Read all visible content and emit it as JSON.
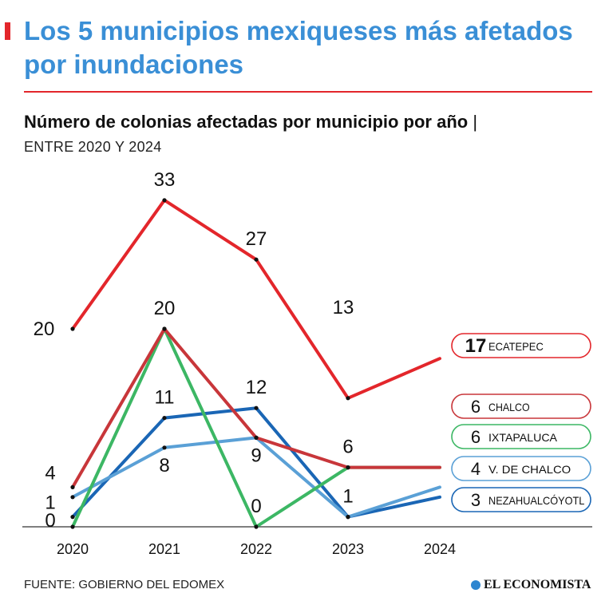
{
  "title": "Los 5 municipios mexiqueses más afetados por inundaciones",
  "subtitle": "Número de colonias afectadas por municipio por año",
  "subtitle_sep": "|",
  "subtitle2": "ENTRE 2020 Y 2024",
  "source": "FUENTE: GOBIERNO DEL EDOMEX",
  "brand": "EL ECONOMISTA",
  "colors": {
    "title": "#3a8fd6",
    "accent": "#e3262b"
  },
  "chart_data": {
    "type": "line",
    "title": "Número de colonias afectadas por municipio por año",
    "x": [
      "2020",
      "2021",
      "2022",
      "2023",
      "2024"
    ],
    "ylim": [
      0,
      35
    ],
    "grid": false,
    "legend": "right",
    "series": [
      {
        "name": "ECATEPEC",
        "values": [
          20,
          33,
          27,
          13,
          17
        ],
        "color": "#e3262b",
        "legend_value": "17",
        "bold": true
      },
      {
        "name": "CHALCO",
        "values": [
          4,
          20,
          9,
          6,
          6
        ],
        "color": "#c8363a",
        "legend_value": "6"
      },
      {
        "name": "IXTAPALUCA",
        "values": [
          0,
          20,
          0,
          6,
          6
        ],
        "color": "#3cb764",
        "legend_value": "6"
      },
      {
        "name": "V. DE CHALCO",
        "values": [
          3,
          8,
          9,
          1,
          4
        ],
        "color": "#5aa0d6",
        "legend_value": "4"
      },
      {
        "name": "NEZAHUALCÓYOTL",
        "values": [
          1,
          11,
          12,
          1,
          3
        ],
        "color": "#1a66b5",
        "legend_value": "3"
      }
    ],
    "data_labels": [
      {
        "text": "20",
        "series": "ECATEPEC",
        "index": 0,
        "pos": "left"
      },
      {
        "text": "33",
        "series": "ECATEPEC",
        "index": 1,
        "pos": "above"
      },
      {
        "text": "27",
        "series": "ECATEPEC",
        "index": 2,
        "pos": "above"
      },
      {
        "text": "13",
        "series": "ECATEPEC",
        "index": 3,
        "pos": "far-above"
      },
      {
        "text": "20",
        "series": "CHALCO",
        "index": 1,
        "pos": "above"
      },
      {
        "text": "4",
        "series": "CHALCO",
        "index": 0,
        "pos": "left"
      },
      {
        "text": "1",
        "series": "NEZAHUALCÓYOTL",
        "index": 0,
        "pos": "left"
      },
      {
        "text": "0",
        "series": "IXTAPALUCA",
        "index": 0,
        "pos": "left"
      },
      {
        "text": "11",
        "series": "NEZAHUALCÓYOTL",
        "index": 1,
        "pos": "above"
      },
      {
        "text": "8",
        "series": "V. DE CHALCO",
        "index": 1,
        "pos": "below"
      },
      {
        "text": "12",
        "series": "NEZAHUALCÓYOTL",
        "index": 2,
        "pos": "above"
      },
      {
        "text": "9",
        "series": "CHALCO",
        "index": 2,
        "pos": "below"
      },
      {
        "text": "0",
        "series": "IXTAPALUCA",
        "index": 2,
        "pos": "above"
      },
      {
        "text": "6",
        "series": "CHALCO",
        "index": 3,
        "pos": "above"
      },
      {
        "text": "1",
        "series": "NEZAHUALCÓYOTL",
        "index": 3,
        "pos": "above"
      }
    ]
  }
}
